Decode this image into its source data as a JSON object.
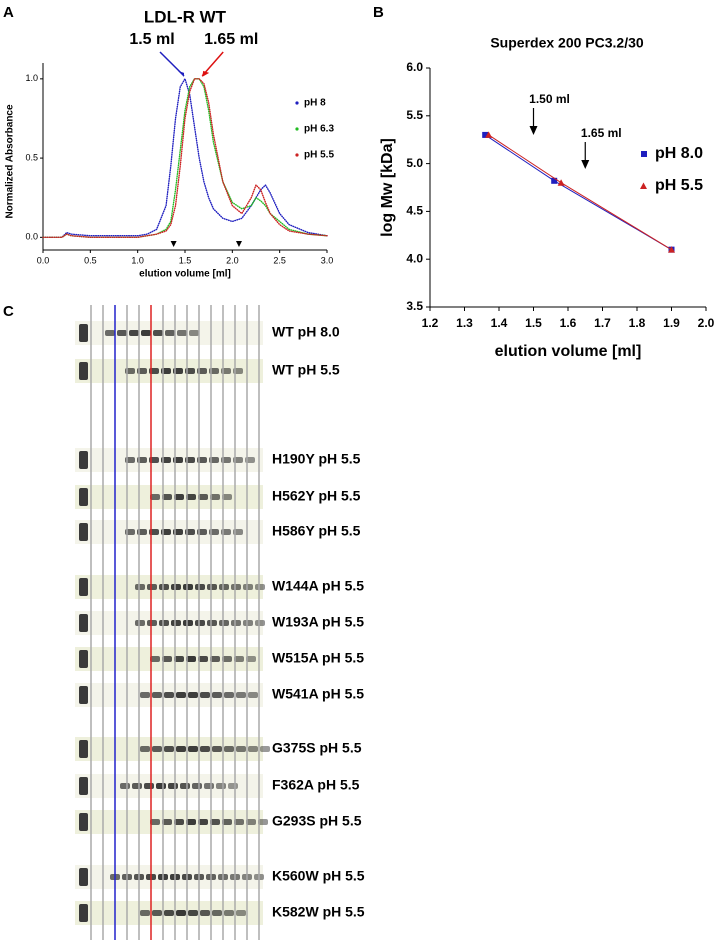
{
  "chart_data": [
    {
      "type": "line",
      "panel_label": "A",
      "title": "LDL-R WT",
      "x_label": "elution volume [ml]",
      "y_label": "Normalized Absorbance",
      "x": [
        0,
        0.2,
        0.25,
        0.3,
        0.5,
        0.8,
        1.0,
        1.1,
        1.2,
        1.3,
        1.35,
        1.4,
        1.45,
        1.5,
        1.55,
        1.6,
        1.65,
        1.7,
        1.75,
        1.8,
        1.9,
        2.0,
        2.1,
        2.2,
        2.25,
        2.3,
        2.35,
        2.4,
        2.5,
        2.6,
        2.8,
        3.0
      ],
      "series": [
        {
          "name": "pH 8",
          "color": "#1f1fbf",
          "values": [
            0,
            0,
            0.03,
            0.02,
            0.01,
            0.01,
            0.01,
            0.02,
            0.05,
            0.2,
            0.45,
            0.75,
            0.95,
            1.0,
            0.9,
            0.7,
            0.5,
            0.35,
            0.25,
            0.18,
            0.12,
            0.1,
            0.12,
            0.2,
            0.25,
            0.3,
            0.33,
            0.28,
            0.15,
            0.08,
            0.03,
            0.01
          ]
        },
        {
          "name": "pH 6.3",
          "color": "#22bb22",
          "values": [
            0,
            0,
            0.02,
            0.01,
            0,
            0,
            0,
            0.01,
            0.02,
            0.05,
            0.1,
            0.3,
            0.55,
            0.8,
            0.95,
            1.0,
            1.0,
            0.95,
            0.8,
            0.6,
            0.35,
            0.22,
            0.18,
            0.2,
            0.25,
            0.23,
            0.2,
            0.15,
            0.1,
            0.05,
            0.02,
            0.01
          ]
        },
        {
          "name": "pH 5.5",
          "color": "#cc2222",
          "values": [
            0,
            0,
            0.02,
            0.01,
            0,
            0,
            0,
            0.01,
            0.02,
            0.04,
            0.08,
            0.2,
            0.45,
            0.75,
            0.92,
            1.0,
            1.0,
            0.97,
            0.85,
            0.65,
            0.35,
            0.2,
            0.15,
            0.25,
            0.33,
            0.3,
            0.22,
            0.15,
            0.08,
            0.04,
            0.02,
            0.01
          ]
        }
      ],
      "annotations": [
        {
          "text": "1.5 ml",
          "x": 1.5,
          "color": "#1f1fbf"
        },
        {
          "text": "1.65 ml",
          "x": 1.65,
          "color": "#dd1111"
        }
      ],
      "arrowheads": [
        1.38,
        2.07
      ],
      "xlim": [
        0,
        3
      ],
      "xticks": [
        {
          "value": 0,
          "label": "0.0"
        },
        0.5,
        {
          "value": 1,
          "label": "1.0"
        },
        1.5,
        {
          "value": 2,
          "label": "2.0"
        },
        2.5,
        {
          "value": 3,
          "label": "3.0"
        }
      ],
      "ylim": [
        -0.08,
        1.1
      ],
      "yticks": [
        {
          "value": 0,
          "label": "0.0"
        },
        0.5,
        {
          "value": 1,
          "label": "1.0"
        }
      ]
    },
    {
      "type": "scatter",
      "panel_label": "B",
      "title": "Superdex 200 PC3.2/30",
      "x_label": "elution volume [ml]",
      "y_label": "log Mw [kDa]",
      "series": [
        {
          "name": "pH 8.0",
          "color": "#1f1fbf",
          "marker": "square",
          "x": [
            1.36,
            1.56,
            1.9
          ],
          "values": [
            5.3,
            4.82,
            4.1
          ]
        },
        {
          "name": "pH 5.5",
          "color": "#cc2222",
          "marker": "triangle",
          "x": [
            1.37,
            1.58,
            1.9
          ],
          "values": [
            5.3,
            4.8,
            4.1
          ]
        }
      ],
      "annotations": [
        {
          "text": "1.50 ml",
          "x": 1.5
        },
        {
          "text": "1.65 ml",
          "x": 1.65
        }
      ],
      "xlim": [
        1.2,
        2.0
      ],
      "xticks": [
        1.2,
        1.3,
        1.4,
        1.5,
        1.6,
        1.7,
        1.8,
        1.9,
        {
          "value": 2,
          "label": "2.0"
        }
      ],
      "ylim": [
        3.5,
        6.0
      ],
      "yticks": [
        3.5,
        {
          "value": 4,
          "label": "4.0"
        },
        4.5,
        {
          "value": 5,
          "label": "5.0"
        },
        5.5,
        {
          "value": 6,
          "label": "6.0"
        }
      ]
    }
  ],
  "gel": {
    "panel_label": "C",
    "groups": [
      [
        "WT pH 8.0",
        "WT pH 5.5"
      ],
      [
        "H190Y pH 5.5",
        "H562Y pH 5.5",
        "H586Y pH 5.5"
      ],
      [
        "W144A pH 5.5",
        "W193A pH 5.5",
        "W515A pH 5.5",
        "W541A pH 5.5"
      ],
      [
        "G375S pH 5.5",
        "F362A pH 5.5",
        "G293S pH 5.5"
      ],
      [
        "K560W pH 5.5",
        "K582W pH 5.5"
      ]
    ]
  }
}
